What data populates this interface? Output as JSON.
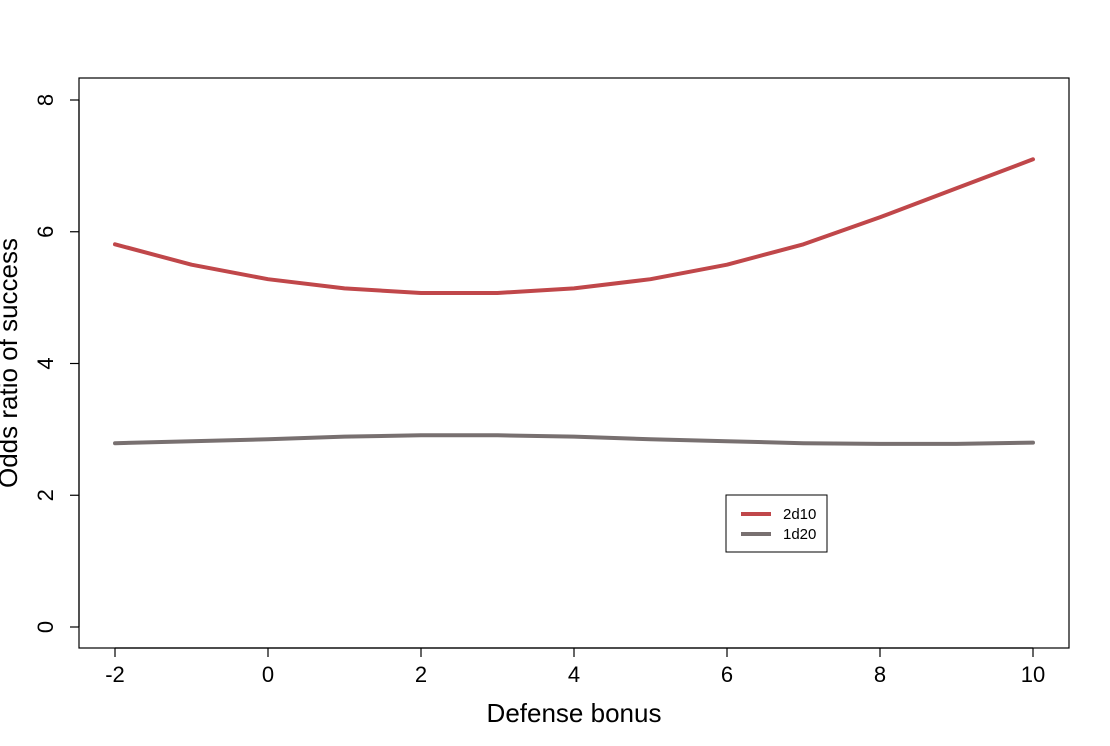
{
  "chart_data": {
    "type": "line",
    "title": "",
    "xlabel": "Defense bonus",
    "ylabel": "Odds ratio of success",
    "xlim": [
      -2,
      10
    ],
    "ylim": [
      0,
      8
    ],
    "xticks": [
      "-2",
      "0",
      "2",
      "4",
      "6",
      "8",
      "10"
    ],
    "yticks": [
      "0",
      "2",
      "4",
      "6",
      "8"
    ],
    "grid": false,
    "legend_position": "lower-right",
    "x": [
      -2,
      -1,
      0,
      1,
      2,
      3,
      4,
      5,
      6,
      7,
      8,
      9,
      10
    ],
    "series": [
      {
        "name": "2d10",
        "color": "#c0474a",
        "values": [
          5.81,
          5.5,
          5.28,
          5.14,
          5.07,
          5.07,
          5.14,
          5.28,
          5.5,
          5.81,
          6.22,
          6.66,
          7.1
        ]
      },
      {
        "name": "1d20",
        "color": "#787070",
        "values": [
          2.79,
          2.82,
          2.85,
          2.89,
          2.91,
          2.91,
          2.89,
          2.85,
          2.82,
          2.79,
          2.78,
          2.78,
          2.8
        ]
      }
    ]
  }
}
